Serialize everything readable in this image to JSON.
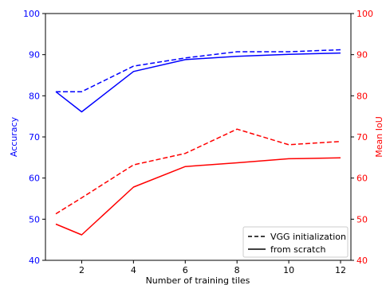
{
  "chart_data": {
    "type": "line",
    "xlabel": "Number of training tiles",
    "ylabel_left": "Accuracy",
    "ylabel_right": "Mean IoU",
    "xlim": [
      0.6,
      12.4
    ],
    "xticks": [
      2,
      4,
      6,
      8,
      10,
      12
    ],
    "ylim_left": [
      40,
      100
    ],
    "ylim_right": [
      40,
      100
    ],
    "yticks": [
      40,
      50,
      60,
      70,
      80,
      90,
      100
    ],
    "grid": false,
    "legend_position": "bottom-right",
    "x": [
      1,
      2,
      4,
      6,
      8,
      10,
      12
    ],
    "series": [
      {
        "axis": "left",
        "color": "#0000ff",
        "dash": true,
        "values": [
          81.0,
          81.0,
          87.2,
          89.2,
          90.7,
          90.7,
          91.2
        ]
      },
      {
        "axis": "left",
        "color": "#0000ff",
        "dash": false,
        "values": [
          81.0,
          76.1,
          85.9,
          88.8,
          89.6,
          90.1,
          90.4
        ]
      },
      {
        "axis": "right",
        "color": "#ff0000",
        "dash": true,
        "values": [
          51.3,
          55.2,
          63.2,
          66.0,
          71.9,
          68.1,
          68.9
        ]
      },
      {
        "axis": "right",
        "color": "#ff0000",
        "dash": false,
        "values": [
          48.8,
          46.2,
          57.8,
          62.8,
          63.7,
          64.7,
          64.9
        ]
      }
    ],
    "legend": [
      {
        "label": "VGG initialization",
        "dash": true
      },
      {
        "label": "from scratch",
        "dash": false
      }
    ],
    "colors": {
      "left_axis": "#0000ff",
      "right_axis": "#ff0000",
      "axes": "#000000"
    }
  }
}
